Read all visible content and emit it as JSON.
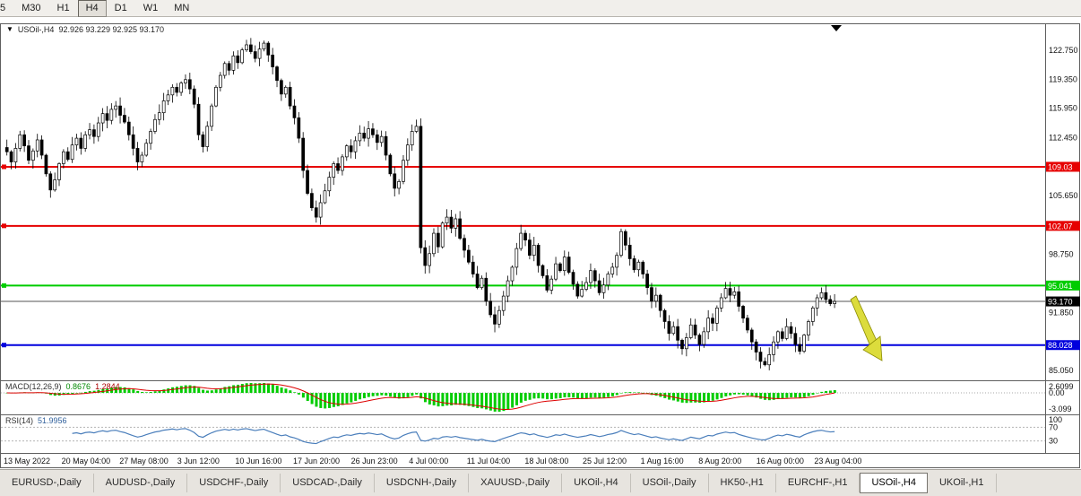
{
  "toolbar": {
    "timeframes": [
      "5",
      "M30",
      "H1",
      "H4",
      "D1",
      "W1",
      "MN"
    ],
    "active": "H4"
  },
  "chart": {
    "symbol": "USOil-,H4",
    "ohlc": "92.926 93.229 92.925 93.170"
  },
  "chart_data": {
    "type": "candlestick",
    "title": "USOil-,H4",
    "symbol": "USOil-",
    "timeframe": "H4",
    "current_ohlc": {
      "open": 92.926,
      "high": 93.229,
      "low": 92.925,
      "close": 93.17
    },
    "ylim": [
      84.3,
      125.3
    ],
    "y_axis_labels": [
      "122.750",
      "119.350",
      "115.950",
      "112.450",
      "105.650",
      "98.750",
      "91.850",
      "85.050"
    ],
    "x_labels": [
      "13 May 2022",
      "20 May 04:00",
      "27 May 08:00",
      "3 Jun 12:00",
      "10 Jun 16:00",
      "17 Jun 20:00",
      "26 Jun 23:00",
      "4 Jul 00:00",
      "11 Jul 04:00",
      "18 Jul 08:00",
      "25 Jul 12:00",
      "1 Aug 16:00",
      "8 Aug 20:00",
      "16 Aug 00:00",
      "23 Aug 04:00"
    ],
    "closes": [
      110.8,
      109.6,
      111.2,
      112.8,
      111.5,
      109.8,
      110.9,
      112.2,
      110.4,
      108.2,
      106.3,
      107.5,
      109.4,
      110.8,
      109.9,
      111.6,
      112.4,
      111.2,
      112.8,
      113.4,
      112.6,
      114.2,
      115.3,
      114.5,
      115.8,
      116.2,
      115.1,
      114.3,
      112.8,
      111.2,
      109.6,
      110.4,
      111.8,
      113.2,
      114.6,
      115.4,
      116.8,
      117.5,
      118.4,
      117.8,
      118.9,
      119.3,
      118.2,
      116.4,
      112.8,
      111.4,
      113.8,
      116.2,
      118.4,
      119.8,
      121.2,
      120.4,
      122.1,
      121.3,
      122.8,
      123.4,
      122.6,
      121.8,
      122.9,
      123.6,
      122.2,
      120.8,
      119.2,
      117.6,
      118.4,
      116.2,
      114.8,
      112.4,
      108.6,
      105.9,
      104.2,
      103.1,
      104.8,
      106.2,
      107.8,
      109.4,
      108.6,
      110.2,
      111.5,
      110.8,
      112.1,
      113.0,
      112.4,
      113.5,
      112.8,
      111.9,
      112.6,
      110.4,
      108.2,
      106.5,
      107.3,
      109.8,
      111.6,
      113.2,
      113.8,
      99.5,
      97.4,
      98.8,
      101.2,
      99.6,
      102.4,
      103.1,
      101.8,
      102.9,
      100.6,
      99.2,
      97.8,
      96.4,
      94.8,
      95.9,
      93.2,
      91.6,
      90.5,
      92.1,
      93.8,
      95.6,
      97.2,
      99.4,
      101.2,
      100.4,
      98.6,
      99.8,
      97.4,
      96.2,
      94.5,
      95.8,
      97.6,
      96.8,
      98.4,
      96.6,
      95.2,
      93.8,
      94.6,
      95.4,
      96.8,
      95.6,
      94.2,
      95.1,
      96.4,
      97.2,
      98.6,
      101.4,
      99.8,
      98.2,
      96.9,
      97.8,
      96.4,
      94.8,
      93.2,
      93.9,
      92.1,
      90.8,
      89.4,
      90.2,
      88.6,
      87.6,
      88.9,
      90.4,
      89.2,
      88.1,
      89.6,
      91.2,
      90.6,
      92.4,
      93.6,
      94.7,
      93.9,
      94.3,
      92.6,
      91.2,
      89.8,
      88.4,
      87.2,
      86.1,
      85.7,
      86.9,
      88.4,
      89.6,
      88.8,
      90.2,
      89.4,
      88.1,
      87.3,
      89.2,
      90.8,
      92.4,
      93.6,
      94.2,
      93.4,
      92.9,
      93.17
    ],
    "hlines": [
      {
        "price": 109.03,
        "label": "109.03",
        "color": "#e60000"
      },
      {
        "price": 102.07,
        "label": "102.07",
        "color": "#e60000"
      },
      {
        "price": 95.041,
        "label": "95.041",
        "color": "#00cc00"
      },
      {
        "price": 88.028,
        "label": "88.028",
        "color": "#0000dd"
      }
    ],
    "price_line": {
      "price": 93.17,
      "label": "93.170",
      "color": "#000000"
    },
    "annotations": [
      {
        "type": "arrow",
        "color": "#dcdc3c",
        "direction": "down-right"
      }
    ],
    "indicators": {
      "macd": {
        "name": "MACD(12,26,9)",
        "value_main": "0.8676",
        "value_signal": "1.2844",
        "axis_labels": [
          "2.6099",
          "0.00",
          "-3.099"
        ],
        "histogram_color": "#00cc00",
        "signal_color": "#dd0000"
      },
      "rsi": {
        "name": "RSI(14)",
        "value": "51.9956",
        "axis_labels": [
          "100",
          "70",
          "30"
        ],
        "levels": [
          70,
          30
        ],
        "line_color": "#4a7ebb"
      }
    }
  },
  "tabs": [
    {
      "label": "EURUSD-,Daily"
    },
    {
      "label": "AUDUSD-,Daily"
    },
    {
      "label": "USDCHF-,Daily"
    },
    {
      "label": "USDCAD-,Daily"
    },
    {
      "label": "USDCNH-,Daily"
    },
    {
      "label": "XAUUSD-,Daily"
    },
    {
      "label": "UKOil-,H4"
    },
    {
      "label": "USOil-,Daily"
    },
    {
      "label": "HK50-,H1"
    },
    {
      "label": "EURCHF-,H1"
    },
    {
      "label": "USOil-,H4",
      "active": true
    },
    {
      "label": "UKOil-,H1"
    }
  ]
}
